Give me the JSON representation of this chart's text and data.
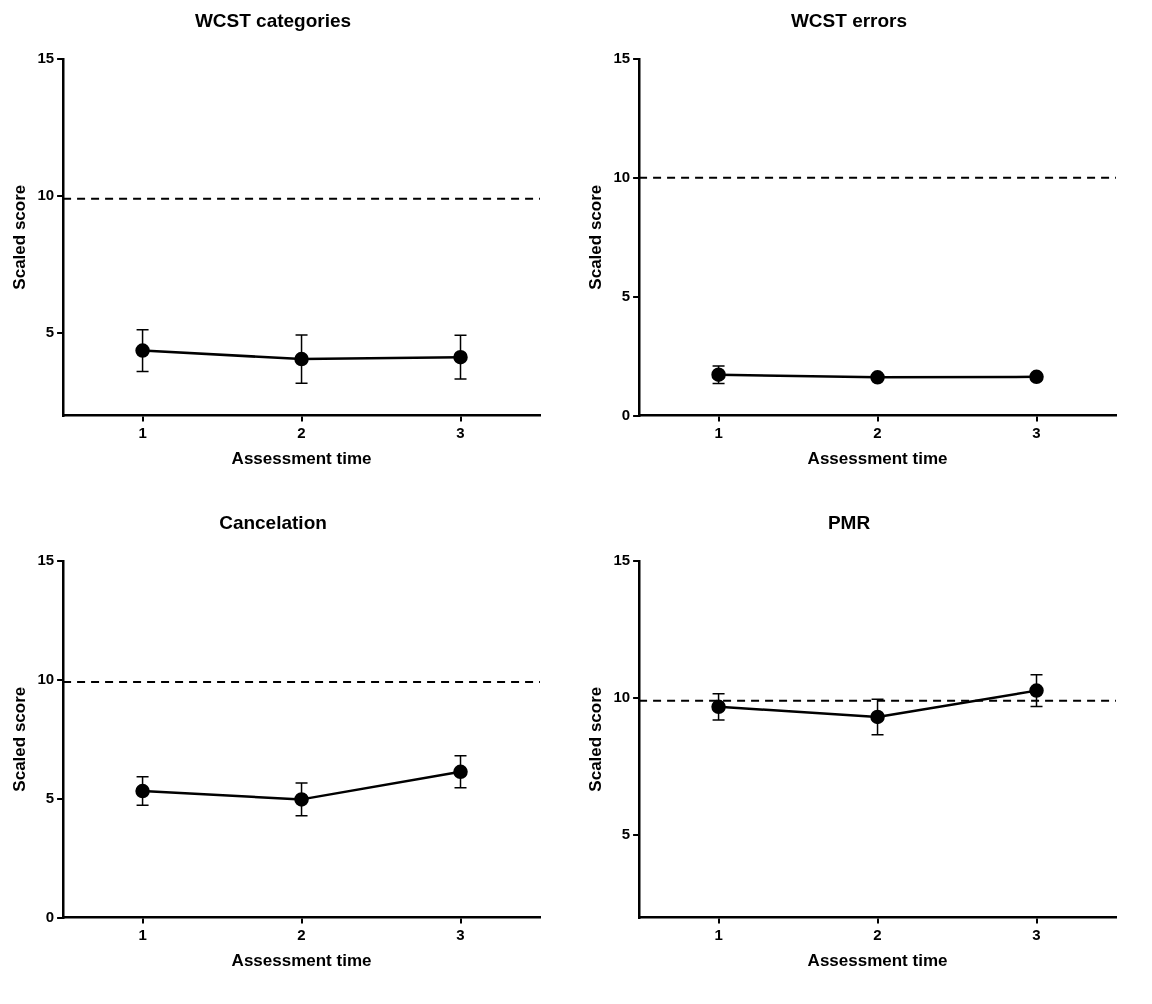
{
  "chart_data": [
    {
      "type": "line",
      "title": "WCST categories",
      "xlabel": "Assessment time",
      "ylabel": "Scaled score",
      "x": [
        1,
        2,
        3
      ],
      "xlim": [
        0.5,
        3.5
      ],
      "xticks": [
        1,
        2,
        3
      ],
      "ylim": [
        2,
        15
      ],
      "yticks": [
        5,
        10,
        15
      ],
      "grid": false,
      "legend": false,
      "marker": "circle",
      "line_style": "solid",
      "series": [
        {
          "color": "#000000",
          "values": [
            4.37,
            4.06,
            4.13
          ],
          "errors": [
            0.76,
            0.88,
            0.8
          ]
        }
      ],
      "ref_lines": [
        {
          "axis": "y",
          "value": 9.9,
          "line_style": "dashed",
          "color": "#000000"
        }
      ]
    },
    {
      "type": "line",
      "title": "WCST errors",
      "xlabel": "Assessment time",
      "ylabel": "Scaled score",
      "x": [
        1,
        2,
        3
      ],
      "xlim": [
        0.5,
        3.5
      ],
      "xticks": [
        1,
        2,
        3
      ],
      "ylim": [
        0,
        15
      ],
      "yticks": [
        0,
        5,
        10,
        15
      ],
      "grid": false,
      "legend": false,
      "marker": "circle",
      "line_style": "solid",
      "series": [
        {
          "color": "#000000",
          "values": [
            1.72,
            1.61,
            1.63
          ],
          "errors": [
            0.37,
            null,
            null
          ]
        }
      ],
      "ref_lines": [
        {
          "axis": "y",
          "value": 10,
          "line_style": "dashed",
          "color": "#000000"
        }
      ]
    },
    {
      "type": "line",
      "title": "Cancelation",
      "xlabel": "Assessment time",
      "ylabel": "Scaled score",
      "x": [
        1,
        2,
        3
      ],
      "xlim": [
        0.5,
        3.5
      ],
      "xticks": [
        1,
        2,
        3
      ],
      "ylim": [
        0,
        15
      ],
      "yticks": [
        0,
        5,
        10,
        15
      ],
      "grid": false,
      "legend": false,
      "marker": "circle",
      "line_style": "solid",
      "series": [
        {
          "color": "#000000",
          "values": [
            5.32,
            4.97,
            6.13
          ],
          "errors": [
            0.6,
            0.69,
            0.67
          ]
        }
      ],
      "ref_lines": [
        {
          "axis": "y",
          "value": 9.9,
          "line_style": "dashed",
          "color": "#000000"
        }
      ]
    },
    {
      "type": "line",
      "title": "PMR",
      "xlabel": "Assessment time",
      "ylabel": "Scaled score",
      "x": [
        1,
        2,
        3
      ],
      "xlim": [
        0.5,
        3.5
      ],
      "xticks": [
        1,
        2,
        3
      ],
      "ylim": [
        2,
        15
      ],
      "yticks": [
        5,
        10,
        15
      ],
      "grid": false,
      "legend": false,
      "marker": "circle",
      "line_style": "solid",
      "series": [
        {
          "color": "#000000",
          "values": [
            9.68,
            9.31,
            10.27
          ],
          "errors": [
            0.48,
            0.65,
            0.58
          ]
        }
      ],
      "ref_lines": [
        {
          "axis": "y",
          "value": 9.9,
          "line_style": "dashed",
          "color": "#000000"
        }
      ]
    }
  ]
}
